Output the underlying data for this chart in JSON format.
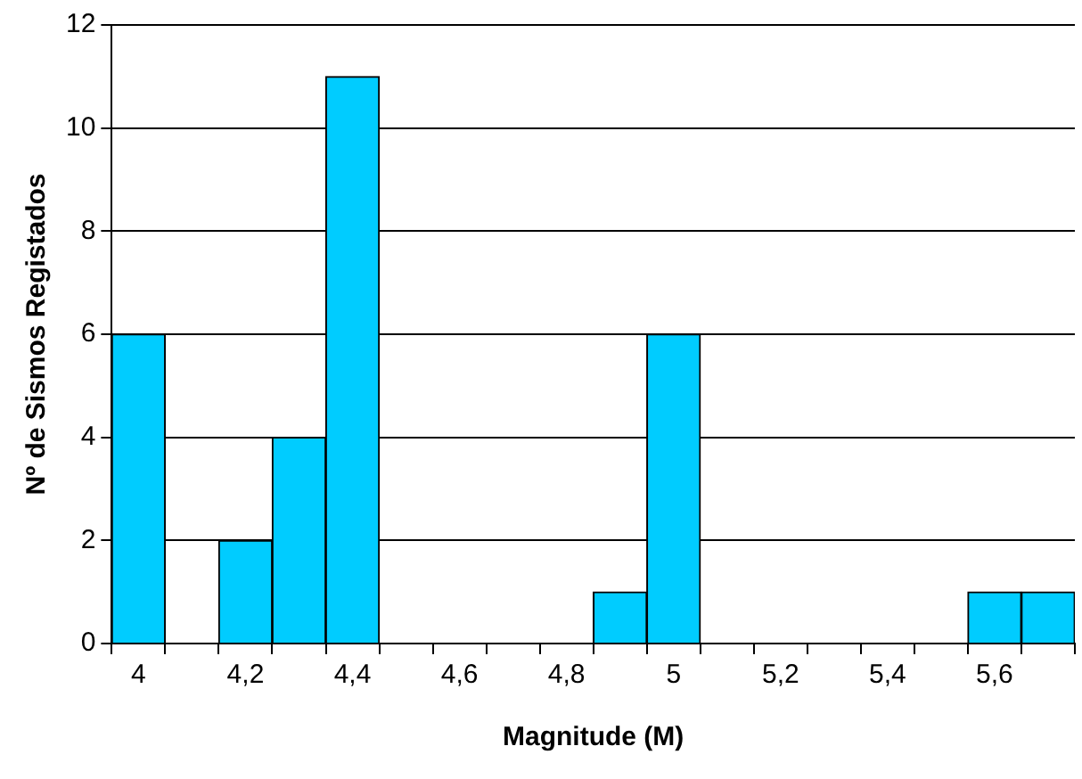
{
  "chart_data": {
    "type": "bar",
    "xlabel": "Magnitude (M)",
    "ylabel": "Nº de Sismos Registados",
    "categories": [
      "4",
      null,
      "4,2",
      null,
      "4,4",
      null,
      "4,6",
      null,
      "4,8",
      null,
      "5",
      null,
      "5,2",
      null,
      "5,4",
      null,
      "5,6",
      null
    ],
    "values": [
      6,
      0,
      2,
      4,
      11,
      0,
      0,
      0,
      0,
      1,
      6,
      0,
      0,
      0,
      0,
      0,
      1,
      1
    ],
    "color": "#00ccff",
    "ylim": [
      0,
      12
    ],
    "yticks": [
      0,
      2,
      4,
      6,
      8,
      10,
      12
    ],
    "grid": "y",
    "legend": false
  }
}
